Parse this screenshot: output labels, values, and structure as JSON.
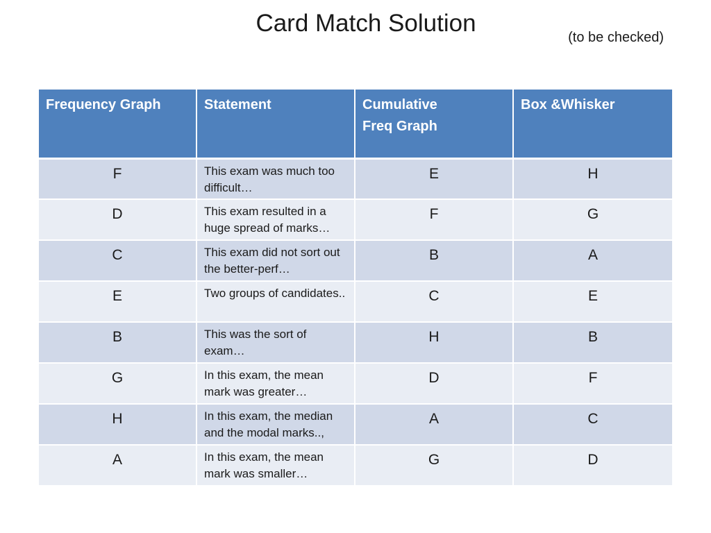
{
  "slide": {
    "title": "Card Match Solution",
    "subtitle": "(to be checked)"
  },
  "table": {
    "headers": {
      "frequency_graph": "Frequency Graph",
      "statement": "Statement",
      "cumulative_line1": "Cumulative",
      "cumulative_line2": "Freq Graph",
      "box_whisker": "Box &Whisker"
    },
    "rows": [
      {
        "freq": "F",
        "statement": "This exam was much too difficult…",
        "cumulative": "E",
        "box": "H"
      },
      {
        "freq": "D",
        "statement": "This exam resulted in a huge spread of marks…",
        "cumulative": "F",
        "box": "G"
      },
      {
        "freq": "C",
        "statement": "This exam did not sort out the better-perf…",
        "cumulative": "B",
        "box": "A"
      },
      {
        "freq": "E",
        "statement": "Two groups of candidates..",
        "cumulative": "C",
        "box": "E"
      },
      {
        "freq": "B",
        "statement": "This was the sort of exam…",
        "cumulative": "H",
        "box": "B"
      },
      {
        "freq": "G",
        "statement": "In this exam, the mean mark was greater…",
        "cumulative": "D",
        "box": "F"
      },
      {
        "freq": "H",
        "statement": "In this exam, the median and the modal marks..,",
        "cumulative": "A",
        "box": "C"
      },
      {
        "freq": "A",
        "statement": "In this exam, the mean mark was smaller…",
        "cumulative": "G",
        "box": "D"
      }
    ]
  },
  "colors": {
    "header_bg": "#4f81bd",
    "row_band_dark": "#d0d8e8",
    "row_band_light": "#e9edf4"
  }
}
